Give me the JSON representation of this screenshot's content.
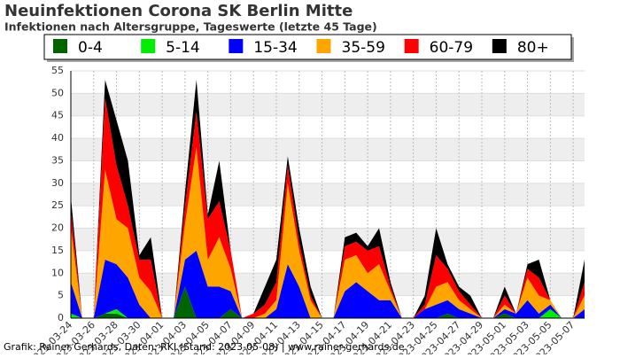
{
  "chart_data": {
    "type": "stacked_area",
    "title": "Neuinfektionen Corona SK Berlin Mitte",
    "subtitle": "Infektionen nach Altersgruppe, Tageswerte (letzte 45 Tage)",
    "footer": "Grafik: Rainer Gerhards, Daten: RKI (Stand: 2023-05-08) | www.rainer-gerhards.de",
    "categories": [
      "2023-03-24",
      null,
      "2023-03-26",
      null,
      "2023-03-28",
      null,
      "2023-03-30",
      null,
      "2023-04-01",
      null,
      "2023-04-03",
      null,
      "2023-04-05",
      null,
      "2023-04-07",
      null,
      "2023-04-09",
      null,
      "2023-04-11",
      null,
      "2023-04-13",
      null,
      "2023-04-15",
      null,
      "2023-04-17",
      null,
      "2023-04-19",
      null,
      "2023-04-21",
      null,
      "2023-04-23",
      null,
      "2023-04-25",
      null,
      "2023-04-27",
      null,
      "2023-04-29",
      null,
      "2023-05-01",
      null,
      "2023-05-03",
      null,
      "2023-05-05",
      null,
      "2023-05-07",
      null
    ],
    "series": [
      {
        "name": "0-4",
        "color": "#006400",
        "values": [
          0,
          0,
          0,
          1,
          1,
          0,
          0,
          0,
          0,
          0,
          7,
          0,
          0,
          0,
          2,
          0,
          0,
          0,
          0,
          0,
          0,
          0,
          0,
          0,
          0,
          0,
          0,
          0,
          0,
          0,
          0,
          0,
          0,
          1,
          0,
          0,
          0,
          0,
          1,
          0,
          0,
          0,
          0,
          0,
          0,
          0
        ]
      },
      {
        "name": "5-14",
        "color": "#00ee00",
        "values": [
          1,
          0,
          0,
          0,
          1,
          0,
          0,
          0,
          0,
          0,
          0,
          0,
          0,
          0,
          0,
          0,
          0,
          0,
          0,
          0,
          0,
          0,
          0,
          0,
          0,
          0,
          0,
          0,
          0,
          0,
          0,
          0,
          0,
          0,
          0,
          0,
          0,
          0,
          0,
          0,
          0,
          0,
          2,
          0,
          0,
          0
        ]
      },
      {
        "name": "15-34",
        "color": "#0000ff",
        "values": [
          7,
          0,
          0,
          12,
          10,
          9,
          3,
          0,
          0,
          0,
          6,
          15,
          7,
          7,
          4,
          0,
          0,
          0,
          2,
          12,
          7,
          0,
          0,
          0,
          6,
          8,
          6,
          4,
          4,
          0,
          0,
          2,
          3,
          3,
          2,
          1,
          0,
          0,
          1,
          1,
          4,
          1,
          1,
          0,
          0,
          2
        ]
      },
      {
        "name": "35-59",
        "color": "#ffa500",
        "values": [
          12,
          0,
          0,
          20,
          10,
          11,
          6,
          6,
          0,
          0,
          8,
          23,
          6,
          11,
          5,
          0,
          0,
          1,
          2,
          18,
          8,
          4,
          0,
          0,
          7,
          6,
          4,
          8,
          2,
          0,
          0,
          0,
          4,
          4,
          2,
          1,
          0,
          0,
          1,
          0,
          5,
          4,
          1,
          0,
          0,
          3
        ]
      },
      {
        "name": "60-79",
        "color": "#ff0000",
        "values": [
          4,
          0,
          0,
          16,
          12,
          5,
          4,
          7,
          0,
          0,
          4,
          8,
          9,
          8,
          4,
          0,
          1,
          2,
          4,
          4,
          2,
          1,
          0,
          0,
          3,
          3,
          5,
          4,
          1,
          0,
          0,
          1,
          7,
          3,
          2,
          1,
          0,
          0,
          2,
          0,
          2,
          4,
          0,
          0,
          0,
          3
        ]
      },
      {
        "name": "80+",
        "color": "#000000",
        "values": [
          3,
          0,
          0,
          4,
          10,
          10,
          1,
          5,
          0,
          0,
          3,
          7,
          1,
          9,
          0,
          0,
          0,
          4,
          5,
          2,
          3,
          2,
          0,
          0,
          2,
          2,
          1,
          4,
          1,
          0,
          0,
          2,
          6,
          1,
          1,
          2,
          0,
          0,
          2,
          0,
          1,
          4,
          0,
          0,
          0,
          5
        ]
      }
    ],
    "ylim": [
      0,
      55
    ],
    "yticks": [
      0,
      5,
      10,
      15,
      20,
      25,
      30,
      35,
      40,
      45,
      50,
      55
    ],
    "grid": true
  }
}
